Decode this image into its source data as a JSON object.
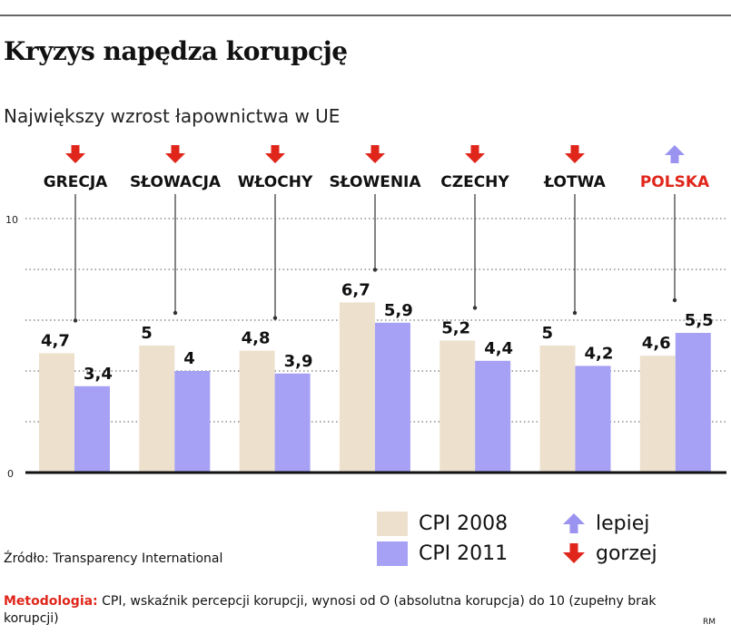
{
  "title": "Kryzys napędza korupcję",
  "subtitle": "Największy wzrost łapownictwa w UE",
  "chart_data": {
    "type": "bar",
    "categories": [
      "GRECJA",
      "SŁOWACJA",
      "WŁOCHY",
      "SŁOWENIA",
      "CZECHY",
      "ŁOTWA",
      "POLSKA"
    ],
    "series": [
      {
        "name": "CPI 2008",
        "color": "#ede1cd",
        "values": [
          4.7,
          5,
          4.8,
          6.7,
          5.2,
          5,
          4.6
        ],
        "labels": [
          "4,7",
          "5",
          "4,8",
          "6,7",
          "5,2",
          "5",
          "4,6"
        ]
      },
      {
        "name": "CPI 2011",
        "color": "#a6a1f4",
        "values": [
          3.4,
          4,
          3.9,
          5.9,
          4.4,
          4.2,
          5.5
        ],
        "labels": [
          "3,4",
          "4",
          "3,9",
          "5,9",
          "4,4",
          "4,2",
          "5,5"
        ]
      }
    ],
    "trend": [
      "down",
      "down",
      "down",
      "down",
      "down",
      "down",
      "up"
    ],
    "highlight_category": "POLSKA",
    "highlight_color": "#e0261b",
    "ylim": [
      0,
      10
    ],
    "yticks": [
      "0",
      "10"
    ],
    "grid": true
  },
  "legend": {
    "cpi2008": "CPI 2008",
    "cpi2011": "CPI 2011",
    "up": "lepiej",
    "down": "gorzej"
  },
  "colors": {
    "up": "#9b93f0",
    "down": "#e0261b"
  },
  "source": "Źródło: Transparency International",
  "method_label": "Metodologia:",
  "method_text": " CPI, wskaźnik percepcji korupcji, wynosi od O (absolutna korupcja) do 10 (zupełny brak korupcji)",
  "credit": "RM"
}
